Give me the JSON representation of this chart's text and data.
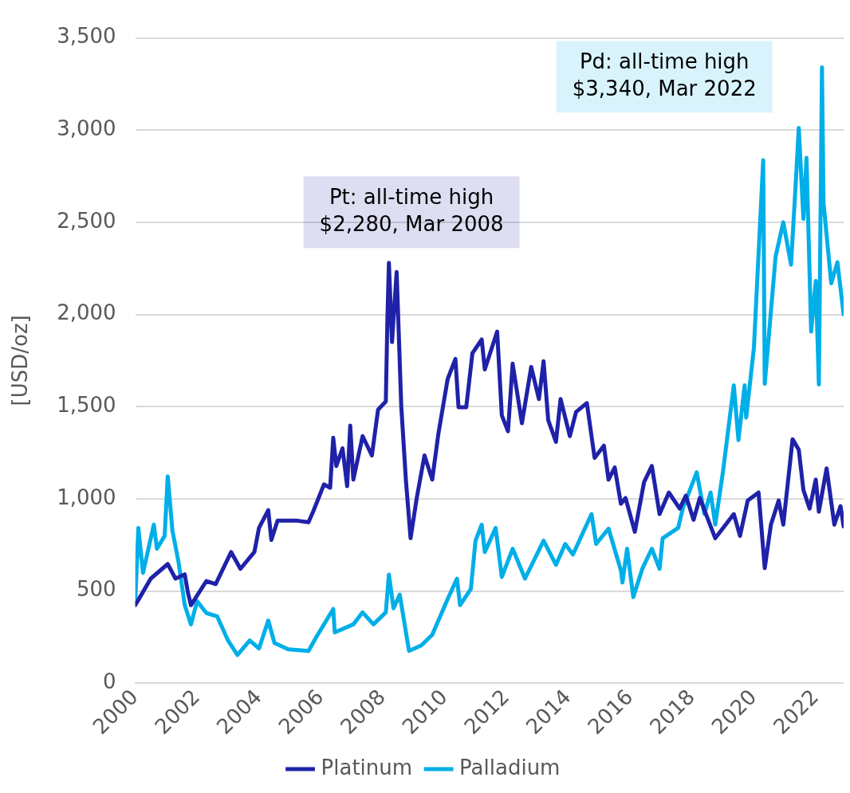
{
  "chart_data": {
    "type": "line",
    "ylabel": "[USD/oz]",
    "xlim": [
      2000,
      2022.9
    ],
    "xticks": [
      2000,
      2002,
      2004,
      2006,
      2008,
      2010,
      2012,
      2014,
      2016,
      2018,
      2020,
      2022
    ],
    "ylim": [
      0,
      3500
    ],
    "yticks": [
      0,
      {
        "value": 500,
        "label": "500"
      },
      {
        "value": 1000,
        "label": "1,000"
      },
      {
        "value": 1500,
        "label": "1,500"
      },
      {
        "value": 2000,
        "label": "2,000"
      },
      {
        "value": 2500,
        "label": "2,500"
      },
      {
        "value": 3000,
        "label": "3,000"
      },
      {
        "value": 3500,
        "label": "3,500"
      }
    ],
    "grid": "y",
    "legend": "bottom",
    "marker": "none",
    "line_style": "solid",
    "annotations": [
      "Pt: all-time high\n$2,280, Mar 2008",
      "Pd: all-time high\n$3,340, Mar 2022"
    ],
    "series": [
      {
        "name": "Platinum",
        "color": "#1f22a8",
        "x": [
          2000.0,
          2000.2,
          2000.5,
          2001.05,
          2001.3,
          2001.6,
          2001.7,
          2001.8,
          2002.3,
          2002.6,
          2003.1,
          2003.4,
          2003.85,
          2004.0,
          2004.3,
          2004.4,
          2004.6,
          2005.2,
          2005.6,
          2005.75,
          2006.1,
          2006.3,
          2006.4,
          2006.5,
          2006.7,
          2006.85,
          2006.95,
          2007.05,
          2007.35,
          2007.65,
          2007.85,
          2008.1,
          2008.15,
          2008.2,
          2008.3,
          2008.45,
          2008.6,
          2008.75,
          2008.9,
          2009.1,
          2009.35,
          2009.6,
          2009.8,
          2010.1,
          2010.35,
          2010.45,
          2010.7,
          2010.9,
          2011.2,
          2011.3,
          2011.7,
          2011.85,
          2012.05,
          2012.2,
          2012.5,
          2012.8,
          2013.05,
          2013.2,
          2013.35,
          2013.6,
          2013.75,
          2014.05,
          2014.25,
          2014.6,
          2014.85,
          2015.15,
          2015.3,
          2015.5,
          2015.7,
          2015.85,
          2016.15,
          2016.45,
          2016.7,
          2016.95,
          2017.25,
          2017.6,
          2017.8,
          2018.05,
          2018.25,
          2018.75,
          2019.35,
          2019.55,
          2019.8,
          2020.15,
          2020.35,
          2020.55,
          2020.8,
          2020.95,
          2021.25,
          2021.45,
          2021.6,
          2021.8,
          2022.0,
          2022.1,
          2022.35,
          2022.6,
          2022.8,
          2022.9
        ],
        "values": [
          423,
          480,
          567,
          646,
          567,
          590,
          493,
          423,
          554,
          537,
          711,
          620,
          711,
          842,
          938,
          777,
          882,
          882,
          873,
          930,
          1078,
          1060,
          1331,
          1178,
          1274,
          1069,
          1397,
          1104,
          1340,
          1235,
          1484,
          1528,
          1964,
          2280,
          1850,
          2230,
          1500,
          1100,
          786,
          1004,
          1235,
          1104,
          1353,
          1650,
          1759,
          1497,
          1497,
          1790,
          1864,
          1702,
          1907,
          1453,
          1366,
          1733,
          1410,
          1715,
          1541,
          1746,
          1427,
          1309,
          1541,
          1340,
          1471,
          1519,
          1222,
          1288,
          1104,
          1170,
          973,
          1004,
          821,
          1091,
          1178,
          917,
          1034,
          947,
          1017,
          886,
          1004,
          786,
          917,
          799,
          991,
          1034,
          624,
          860,
          991,
          860,
          1323,
          1266,
          1048,
          947,
          1104,
          930,
          1165,
          860,
          960,
          850
        ]
      },
      {
        "name": "Palladium",
        "color": "#00aee8",
        "x": [
          2000.0,
          2000.1,
          2000.25,
          2000.6,
          2000.7,
          2000.95,
          2001.05,
          2001.2,
          2001.4,
          2001.6,
          2001.8,
          2002.0,
          2002.3,
          2002.65,
          2003.0,
          2003.3,
          2003.7,
          2004.0,
          2004.3,
          2004.5,
          2004.95,
          2005.6,
          2005.85,
          2006.4,
          2006.45,
          2007.05,
          2007.35,
          2007.7,
          2008.1,
          2008.2,
          2008.35,
          2008.55,
          2008.85,
          2009.25,
          2009.6,
          2010.05,
          2010.4,
          2010.5,
          2010.85,
          2011.0,
          2011.2,
          2011.3,
          2011.65,
          2011.85,
          2012.2,
          2012.6,
          2013.2,
          2013.6,
          2013.9,
          2014.15,
          2014.75,
          2014.9,
          2015.3,
          2015.7,
          2015.75,
          2015.9,
          2016.1,
          2016.4,
          2016.7,
          2016.95,
          2017.05,
          2017.55,
          2017.7,
          2018.15,
          2018.4,
          2018.6,
          2018.75,
          2019.0,
          2019.35,
          2019.5,
          2019.7,
          2019.75,
          2020.0,
          2020.3,
          2020.35,
          2020.7,
          2020.95,
          2021.2,
          2021.35,
          2021.45,
          2021.6,
          2021.7,
          2021.85,
          2022.0,
          2022.1,
          2022.2,
          2022.25,
          2022.5,
          2022.7,
          2022.9
        ],
        "values": [
          437,
          842,
          598,
          860,
          729,
          799,
          1122,
          829,
          655,
          423,
          319,
          445,
          380,
          362,
          231,
          153,
          231,
          188,
          340,
          218,
          183,
          175,
          249,
          402,
          275,
          319,
          384,
          319,
          384,
          589,
          406,
          480,
          175,
          205,
          262,
          437,
          567,
          423,
          511,
          773,
          860,
          711,
          842,
          576,
          729,
          567,
          773,
          642,
          755,
          698,
          917,
          755,
          838,
          611,
          546,
          729,
          467,
          624,
          729,
          620,
          786,
          842,
          947,
          1144,
          917,
          1034,
          860,
          1148,
          1615,
          1318,
          1615,
          1440,
          1820,
          2837,
          1624,
          2313,
          2500,
          2270,
          2706,
          3012,
          2518,
          2850,
          1907,
          2182,
          1620,
          3340,
          2606,
          2169,
          2283,
          2000
        ]
      }
    ]
  }
}
